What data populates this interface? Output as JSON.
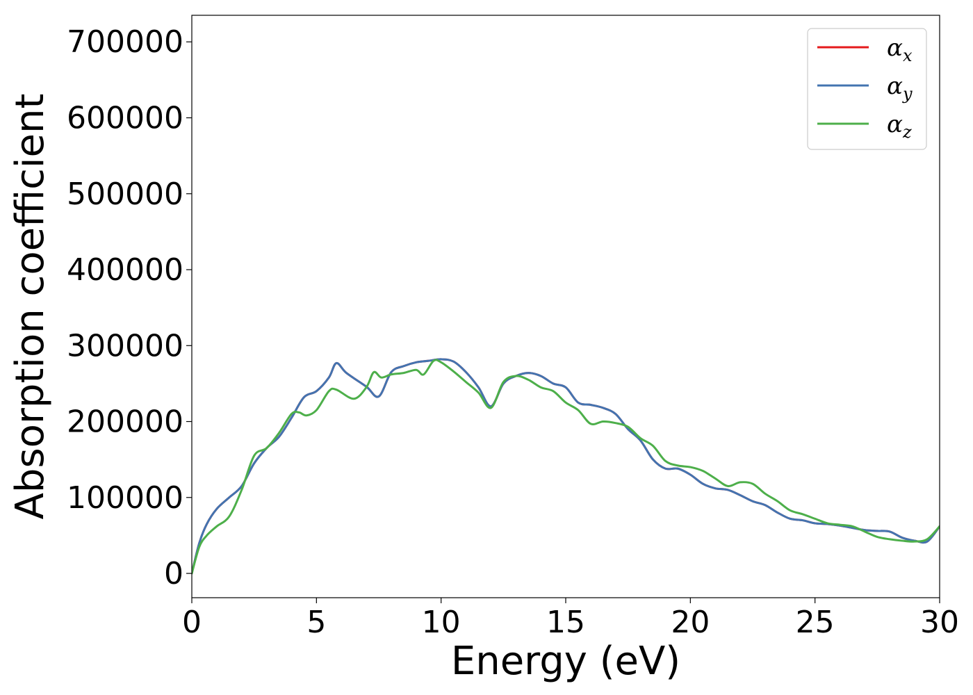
{
  "chart_data": {
    "type": "line",
    "xlabel": "Energy (eV)",
    "ylabel": "Absorption coefficient",
    "xlim": [
      0,
      30
    ],
    "ylim": [
      -32000,
      735000
    ],
    "xticks": [
      0,
      5,
      10,
      15,
      20,
      25,
      30
    ],
    "yticks": [
      0,
      100000,
      200000,
      300000,
      400000,
      500000,
      600000,
      700000
    ],
    "grid": false,
    "legend_position": "top-right",
    "series": [
      {
        "name": "α_x",
        "label_base": "α",
        "label_sub": "x",
        "color": "#e41a1c",
        "x": [
          0,
          0.3,
          0.6,
          1,
          1.5,
          2,
          2.5,
          3,
          3.5,
          4,
          4.5,
          5,
          5.5,
          5.8,
          6.2,
          7,
          7.5,
          8,
          8.5,
          9,
          9.5,
          10,
          10.5,
          11,
          11.5,
          12,
          12.5,
          13,
          13.5,
          14,
          14.5,
          15,
          15.5,
          16,
          16.5,
          17,
          17.5,
          18,
          18.5,
          19,
          19.5,
          20,
          20.5,
          21,
          21.5,
          22,
          22.5,
          23,
          23.5,
          24,
          24.5,
          25,
          25.5,
          26,
          26.5,
          27,
          27.5,
          28,
          28.5,
          29,
          29.5,
          30
        ],
        "y": [
          0,
          40000,
          65000,
          85000,
          100000,
          115000,
          145000,
          165000,
          180000,
          205000,
          232000,
          240000,
          258000,
          277000,
          264000,
          246000,
          233000,
          265000,
          273000,
          278000,
          280000,
          282000,
          279000,
          265000,
          245000,
          220000,
          250000,
          260000,
          264000,
          260000,
          250000,
          245000,
          225000,
          222000,
          218000,
          210000,
          190000,
          175000,
          150000,
          138000,
          138000,
          130000,
          118000,
          112000,
          110000,
          103000,
          95000,
          90000,
          80000,
          72000,
          70000,
          66000,
          65000,
          63000,
          60000,
          57000,
          56000,
          55000,
          47000,
          43000,
          42000,
          62000
        ]
      },
      {
        "name": "α_y",
        "label_base": "α",
        "label_sub": "y",
        "color": "#4374b0",
        "x": [
          0,
          0.3,
          0.6,
          1,
          1.5,
          2,
          2.5,
          3,
          3.5,
          4,
          4.5,
          5,
          5.5,
          5.8,
          6.2,
          7,
          7.5,
          8,
          8.5,
          9,
          9.5,
          10,
          10.5,
          11,
          11.5,
          12,
          12.5,
          13,
          13.5,
          14,
          14.5,
          15,
          15.5,
          16,
          16.5,
          17,
          17.5,
          18,
          18.5,
          19,
          19.5,
          20,
          20.5,
          21,
          21.5,
          22,
          22.5,
          23,
          23.5,
          24,
          24.5,
          25,
          25.5,
          26,
          26.5,
          27,
          27.5,
          28,
          28.5,
          29,
          29.5,
          30
        ],
        "y": [
          0,
          40000,
          65000,
          85000,
          100000,
          115000,
          145000,
          165000,
          180000,
          205000,
          232000,
          240000,
          258000,
          277000,
          264000,
          246000,
          233000,
          265000,
          273000,
          278000,
          280000,
          282000,
          279000,
          265000,
          245000,
          220000,
          250000,
          260000,
          264000,
          260000,
          250000,
          245000,
          225000,
          222000,
          218000,
          210000,
          190000,
          175000,
          150000,
          138000,
          138000,
          130000,
          118000,
          112000,
          110000,
          103000,
          95000,
          90000,
          80000,
          72000,
          70000,
          66000,
          65000,
          63000,
          60000,
          57000,
          56000,
          55000,
          47000,
          43000,
          42000,
          62000
        ]
      },
      {
        "name": "α_z",
        "label_base": "α",
        "label_sub": "z",
        "color": "#4daf4a",
        "x": [
          0,
          0.3,
          0.6,
          1,
          1.5,
          2,
          2.5,
          3,
          3.5,
          4,
          4.3,
          4.6,
          5,
          5.5,
          5.8,
          6.5,
          7,
          7.3,
          7.6,
          8,
          8.5,
          9,
          9.3,
          9.7,
          10,
          10.5,
          11,
          11.5,
          12,
          12.5,
          13,
          13.5,
          14,
          14.5,
          15,
          15.5,
          16,
          16.5,
          17,
          17.5,
          18,
          18.5,
          19,
          19.5,
          20,
          20.5,
          21,
          21.5,
          22,
          22.5,
          23,
          23.5,
          24,
          24.5,
          25,
          25.5,
          26,
          26.5,
          27,
          27.5,
          28,
          28.5,
          29,
          29.5,
          30
        ],
        "y": [
          0,
          35000,
          50000,
          62000,
          75000,
          110000,
          155000,
          165000,
          185000,
          210000,
          212000,
          208000,
          215000,
          240000,
          242000,
          230000,
          245000,
          265000,
          258000,
          262000,
          264000,
          268000,
          262000,
          280000,
          278000,
          266000,
          252000,
          238000,
          218000,
          252000,
          260000,
          255000,
          245000,
          240000,
          225000,
          215000,
          197000,
          200000,
          198000,
          193000,
          178000,
          168000,
          148000,
          142000,
          140000,
          135000,
          125000,
          115000,
          120000,
          118000,
          105000,
          95000,
          83000,
          78000,
          72000,
          66000,
          64000,
          62000,
          55000,
          48000,
          45000,
          43000,
          42000,
          45000,
          62000
        ]
      }
    ]
  }
}
